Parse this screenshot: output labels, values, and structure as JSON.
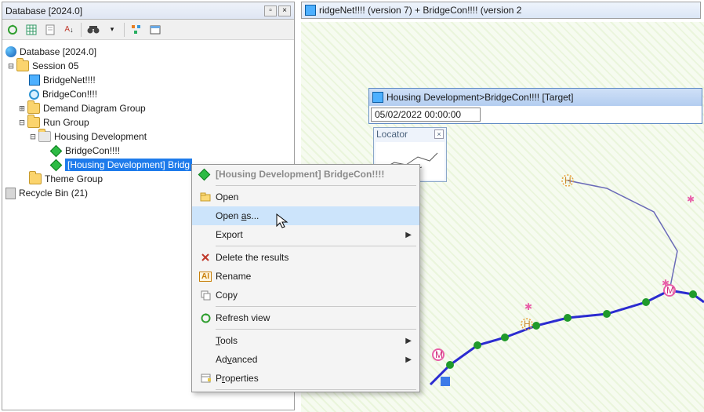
{
  "db_panel": {
    "title": "Database [2024.0]",
    "toolbar_icons": [
      "refresh",
      "grid",
      "sheet",
      "sort",
      "filter",
      "binoc",
      "sort2",
      "swap",
      "window"
    ]
  },
  "tree": {
    "root": "Database [2024.0]",
    "session": "Session 05",
    "bridgenet": "BridgeNet!!!!",
    "bridgecon": "BridgeCon!!!!",
    "demand": "Demand Diagram Group",
    "run": "Run Group",
    "housing": "Housing Development",
    "child_bridgecon": "BridgeCon!!!!",
    "child_sel": "[Housing Development] Bridg",
    "theme": "Theme Group",
    "recycle": "Recycle Bin (21)"
  },
  "right": {
    "tab_text": "ridgeNet!!!! (version 7) + BridgeCon!!!! (version 2",
    "inner_title": "Housing Development>BridgeCon!!!!   [Target]",
    "datetime": "05/02/2022 00:00:00",
    "locator_label": "Locator"
  },
  "context_menu": {
    "header": "[Housing Development] BridgeCon!!!!",
    "items": [
      {
        "label": "Open",
        "icon": "open",
        "enabled": true
      },
      {
        "label": "Open as...",
        "icon": "",
        "hover": true,
        "u": 5
      },
      {
        "label": "Export",
        "icon": "",
        "arrow": true
      },
      {
        "label": "Delete the results",
        "icon": "x"
      },
      {
        "label": "Rename",
        "icon": "aI"
      },
      {
        "label": "Copy",
        "icon": "copy"
      },
      {
        "label": "Refresh view",
        "icon": "refresh"
      },
      {
        "label": "Tools",
        "icon": "",
        "arrow": true,
        "u": 0
      },
      {
        "label": "Advanced",
        "icon": "",
        "arrow": true,
        "u": 2
      },
      {
        "label": "Properties",
        "icon": "props",
        "u": 1
      }
    ],
    "separators_after": [
      0,
      3,
      6,
      7,
      10
    ]
  },
  "network": {
    "bg_stripe_a": "#f6fbf0",
    "bg_stripe_b": "#eaf5dc",
    "line_color": "#2b2bd0",
    "node_green": "#1f9a2b",
    "node_pink": "#e85fa8",
    "node_orange": "#e8a13b"
  },
  "colors": {
    "selection": "#1e7beb",
    "menu_hover": "#cce4fb"
  }
}
